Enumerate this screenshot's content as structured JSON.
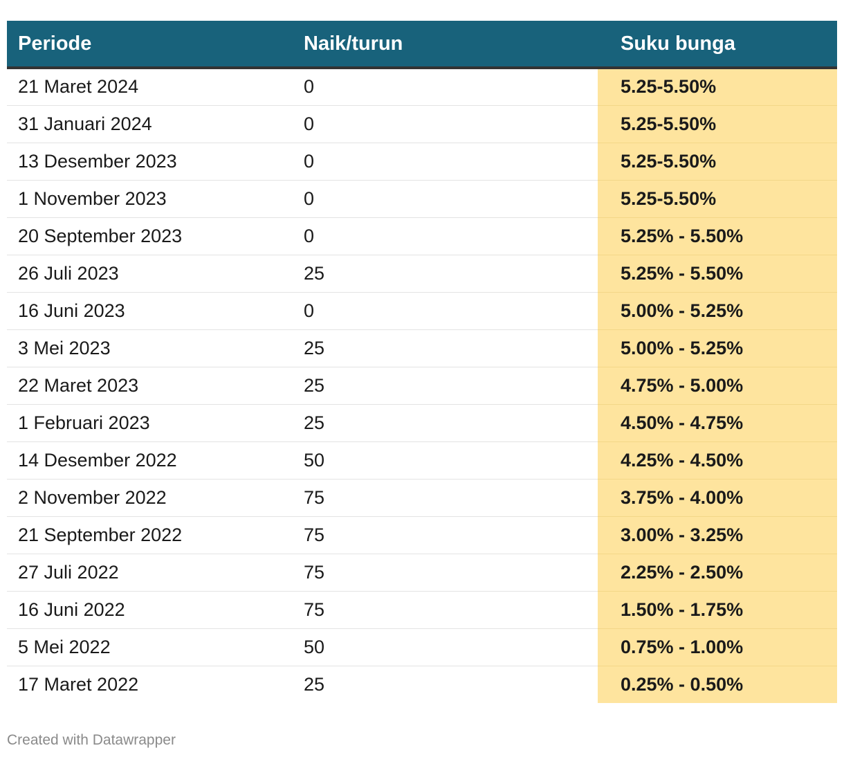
{
  "chart_data": {
    "type": "table",
    "columns": [
      "Periode",
      "Naik/turun",
      "Suku bunga"
    ],
    "rows": [
      {
        "periode": "21 Maret 2024",
        "naik_turun": "0",
        "suku_bunga": "5.25-5.50%"
      },
      {
        "periode": "31 Januari 2024",
        "naik_turun": "0",
        "suku_bunga": "5.25-5.50%"
      },
      {
        "periode": "13 Desember 2023",
        "naik_turun": "0",
        "suku_bunga": "5.25-5.50%"
      },
      {
        "periode": "1 November 2023",
        "naik_turun": "0",
        "suku_bunga": "5.25-5.50%"
      },
      {
        "periode": "20 September 2023",
        "naik_turun": "0",
        "suku_bunga": "5.25% - 5.50%"
      },
      {
        "periode": "26 Juli 2023",
        "naik_turun": "25",
        "suku_bunga": "5.25% - 5.50%"
      },
      {
        "periode": "16 Juni 2023",
        "naik_turun": "0",
        "suku_bunga": "5.00% - 5.25%"
      },
      {
        "periode": "3 Mei 2023",
        "naik_turun": "25",
        "suku_bunga": "5.00% - 5.25%"
      },
      {
        "periode": "22 Maret 2023",
        "naik_turun": "25",
        "suku_bunga": "4.75% - 5.00%"
      },
      {
        "periode": "1 Februari 2023",
        "naik_turun": "25",
        "suku_bunga": "4.50% - 4.75%"
      },
      {
        "periode": "14 Desember 2022",
        "naik_turun": "50",
        "suku_bunga": "4.25% - 4.50%"
      },
      {
        "periode": "2 November 2022",
        "naik_turun": "75",
        "suku_bunga": "3.75% - 4.00%"
      },
      {
        "periode": "21 September 2022",
        "naik_turun": "75",
        "suku_bunga": "3.00% - 3.25%"
      },
      {
        "periode": "27 Juli 2022",
        "naik_turun": "75",
        "suku_bunga": "2.25% - 2.50%"
      },
      {
        "periode": "16 Juni 2022",
        "naik_turun": "75",
        "suku_bunga": "1.50% - 1.75%"
      },
      {
        "periode": "5 Mei 2022",
        "naik_turun": "50",
        "suku_bunga": "0.75% - 1.00%"
      },
      {
        "periode": "17 Maret 2022",
        "naik_turun": "25",
        "suku_bunga": "0.25% - 0.50%"
      }
    ]
  },
  "colors": {
    "header_bg": "#18627b",
    "highlight_bg": "#fee49e"
  },
  "footer": {
    "credit": "Created with Datawrapper"
  }
}
